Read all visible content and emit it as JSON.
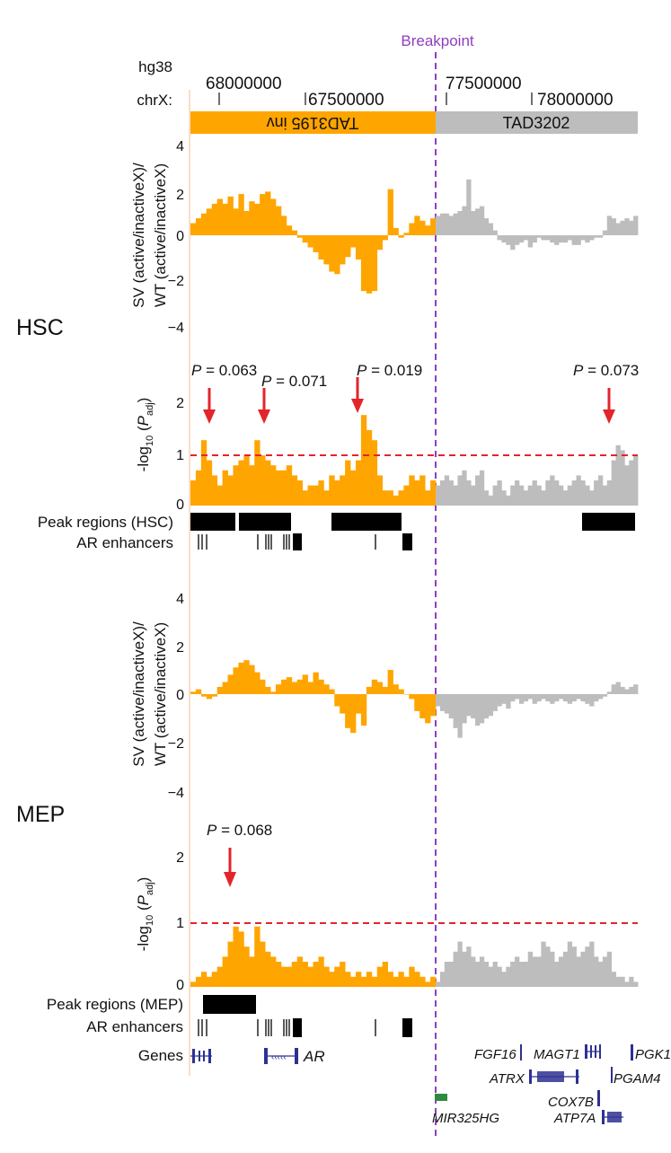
{
  "header": {
    "breakpoint_label": "Breakpoint",
    "assembly_label": "hg38",
    "chrom_label": "chrX:",
    "coord_ticks": [
      "68000000",
      "67500000",
      "77500000",
      "78000000"
    ],
    "tad_left": "TAD3195 inv",
    "tad_right": "TAD3202"
  },
  "colors": {
    "left_series": "#FFA500",
    "right_series": "#BDBDBD",
    "breakpoint": "#8E3FC0",
    "threshold": "#E3242B",
    "arrow": "#E3242B",
    "peaks": "#000000",
    "genes": "#2E3192",
    "mir_gene": "#2E8B3D"
  },
  "panels": {
    "hsc_label": "HSC",
    "mep_label": "MEP",
    "ratio_ylabel_line1": "SV (active/inactiveX)/",
    "ratio_ylabel_line2": "WT (active/inactiveX)",
    "pval_ylabel_prefix": "-log",
    "pval_ylabel_sub10": "10",
    "pval_ylabel_mid": " (",
    "pval_ylabel_p": "P",
    "pval_ylabel_sub": "adj",
    "pval_ylabel_suffix": ")",
    "ratio_ticks": [
      "4",
      "2",
      "0",
      "−2",
      "−4"
    ],
    "pval_ticks": [
      "2",
      "1",
      "0"
    ]
  },
  "hsc_annotations": [
    {
      "p": "P",
      "text": " = 0.063"
    },
    {
      "p": "P",
      "text": " = 0.071"
    },
    {
      "p": "P",
      "text": " = 0.019"
    },
    {
      "p": "P",
      "text": " = 0.073"
    }
  ],
  "mep_annotations": [
    {
      "p": "P",
      "text": " = 0.068"
    }
  ],
  "tracks": {
    "peaks_hsc": "Peak regions (HSC)",
    "ar_enhancers": "AR enhancers",
    "peaks_mep": "Peak regions (MEP)",
    "genes": "Genes"
  },
  "genes": {
    "ar": "AR",
    "fgf16": "FGF16",
    "magt1": "MAGT1",
    "pgk1": "PGK1",
    "atrx": "ATRX",
    "pgam4": "PGAM4",
    "cox7b": "COX7B",
    "mir325hg": "MIR325HG",
    "atp7a": "ATP7A"
  },
  "chart_data": [
    {
      "type": "bar",
      "title": "HSC",
      "ylabel": "SV (active/inactiveX)/WT (active/inactiveX)",
      "ylim": [
        -4,
        4
      ],
      "series": [
        {
          "values": [
            0.5,
            0.7,
            0.9,
            1.1,
            1.3,
            1.5,
            1.3,
            1.6,
            1.1,
            1.7,
            1.0,
            1.4,
            1.3,
            1.7,
            1.8,
            1.5,
            1.2,
            0.8,
            0.4,
            0.2,
            -0.1,
            -0.3,
            -0.5,
            -0.7,
            -1.0,
            -1.2,
            -1.5,
            -1.6,
            -1.2,
            -0.9,
            -0.5,
            -1.0,
            -2.3,
            -2.4,
            -2.3,
            -0.6,
            -0.2,
            1.9,
            0.3,
            -0.1,
            0.1,
            0.5,
            0.8,
            0.6,
            0.4,
            0.7
          ]
        },
        {
          "values": [
            0.8,
            0.9,
            0.9,
            0.8,
            0.9,
            1.0,
            1.2,
            2.3,
            1.0,
            1.1,
            1.2,
            0.7,
            0.5,
            0.2,
            -0.2,
            -0.3,
            -0.4,
            -0.6,
            -0.4,
            -0.3,
            -0.2,
            -0.5,
            -0.3,
            -0.1,
            -0.2,
            -0.2,
            -0.3,
            -0.4,
            -0.3,
            -0.3,
            -0.2,
            -0.4,
            -0.4,
            -0.2,
            -0.3,
            -0.2,
            -0.1,
            -0.1,
            0.2,
            0.8,
            0.7,
            0.5,
            0.6,
            0.7,
            0.6,
            0.8
          ]
        }
      ]
    },
    {
      "type": "bar",
      "title": "HSC",
      "ylabel": "-log10 (Padj)",
      "ylim": [
        0,
        2.4
      ],
      "threshold": 1.0,
      "series": [
        {
          "values": [
            0.5,
            0.7,
            1.3,
            0.9,
            0.6,
            0.4,
            0.7,
            0.6,
            0.8,
            0.9,
            1.0,
            0.8,
            1.3,
            1.0,
            0.9,
            0.8,
            0.7,
            0.7,
            0.8,
            0.6,
            0.5,
            0.3,
            0.4,
            0.4,
            0.5,
            0.3,
            0.6,
            0.5,
            0.6,
            0.9,
            0.7,
            0.9,
            1.8,
            1.5,
            1.3,
            0.6,
            0.3,
            0.3,
            0.2,
            0.3,
            0.4,
            0.6,
            0.5,
            0.6,
            0.3,
            0.5
          ]
        },
        {
          "values": [
            0.4,
            0.5,
            0.6,
            0.5,
            0.4,
            0.6,
            0.7,
            0.5,
            0.4,
            0.6,
            0.7,
            0.3,
            0.2,
            0.4,
            0.5,
            0.3,
            0.2,
            0.4,
            0.5,
            0.4,
            0.3,
            0.4,
            0.5,
            0.4,
            0.3,
            0.5,
            0.6,
            0.5,
            0.4,
            0.3,
            0.4,
            0.5,
            0.6,
            0.5,
            0.4,
            0.3,
            0.5,
            0.6,
            0.4,
            0.5,
            0.9,
            1.2,
            1.1,
            0.8,
            0.9,
            1.0
          ]
        }
      ]
    },
    {
      "type": "bar",
      "title": "MEP",
      "ylabel": "SV (active/inactiveX)/WT (active/inactiveX)",
      "ylim": [
        -4,
        4
      ],
      "series": [
        {
          "values": [
            0.1,
            0.2,
            -0.1,
            -0.2,
            -0.1,
            0.3,
            0.5,
            0.8,
            1.1,
            1.3,
            1.4,
            1.2,
            0.9,
            0.6,
            0.3,
            0.1,
            0.4,
            0.6,
            0.7,
            0.5,
            0.6,
            0.8,
            0.5,
            0.9,
            0.6,
            0.4,
            0.2,
            -0.5,
            -0.8,
            -1.4,
            -1.6,
            -0.8,
            -1.3,
            0.3,
            0.6,
            0.5,
            0.3,
            1.0,
            0.4,
            0.2,
            0.0,
            -0.2,
            -0.7,
            -1.0,
            -1.2,
            -0.9
          ]
        },
        {
          "values": [
            -0.5,
            -0.7,
            -0.8,
            -1.0,
            -1.4,
            -1.8,
            -1.2,
            -0.9,
            -1.0,
            -1.3,
            -1.2,
            -1.0,
            -0.9,
            -0.7,
            -0.5,
            -0.4,
            -0.6,
            -0.3,
            -0.2,
            -0.4,
            -0.3,
            -0.2,
            -0.4,
            -0.3,
            -0.2,
            -0.3,
            -0.4,
            -0.3,
            -0.2,
            -0.3,
            -0.4,
            -0.3,
            -0.2,
            -0.3,
            -0.4,
            -0.5,
            -0.3,
            -0.2,
            -0.1,
            0.1,
            0.4,
            0.5,
            0.3,
            0.2,
            0.3,
            0.4
          ]
        }
      ]
    },
    {
      "type": "bar",
      "title": "MEP",
      "ylabel": "-log10 (Padj)",
      "ylim": [
        0,
        2.4
      ],
      "threshold": 1.0,
      "series": [
        {
          "values": [
            0.1,
            0.2,
            0.3,
            0.2,
            0.3,
            0.4,
            0.6,
            0.9,
            1.2,
            1.1,
            0.8,
            0.6,
            1.2,
            0.9,
            0.7,
            0.6,
            0.5,
            0.4,
            0.4,
            0.5,
            0.6,
            0.5,
            0.4,
            0.5,
            0.6,
            0.4,
            0.3,
            0.4,
            0.5,
            0.3,
            0.2,
            0.3,
            0.2,
            0.3,
            0.2,
            0.4,
            0.5,
            0.3,
            0.2,
            0.3,
            0.2,
            0.4,
            0.3,
            0.2,
            0.1,
            0.2
          ]
        },
        {
          "values": [
            0.1,
            0.3,
            0.5,
            0.5,
            0.7,
            0.9,
            0.7,
            0.8,
            0.6,
            0.5,
            0.6,
            0.5,
            0.4,
            0.5,
            0.4,
            0.3,
            0.4,
            0.5,
            0.6,
            0.5,
            0.5,
            0.7,
            0.6,
            0.6,
            0.9,
            0.8,
            0.7,
            0.5,
            0.6,
            0.7,
            0.9,
            0.8,
            0.6,
            0.7,
            0.8,
            0.9,
            0.6,
            0.5,
            0.6,
            0.7,
            0.3,
            0.2,
            0.2,
            0.1,
            0.2,
            0.1
          ]
        }
      ]
    }
  ]
}
